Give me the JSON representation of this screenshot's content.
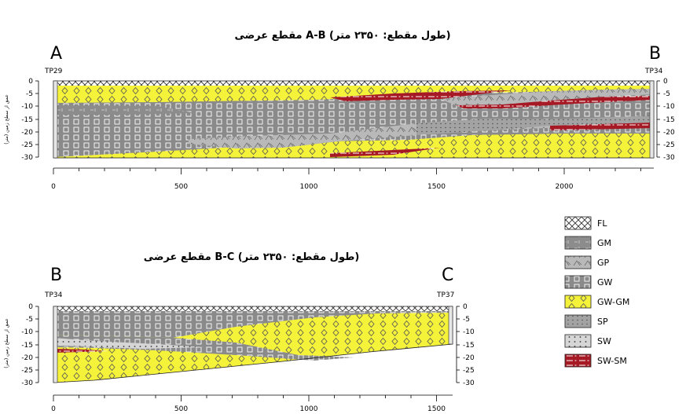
{
  "section_ab": {
    "title_ltr": "A-B",
    "title_rtl_before": "مقطع عرضی",
    "title_rtl_after": "(طول مقطع: ۲۳۵۰ متر)",
    "left_label": "A",
    "right_label": "B",
    "left_tp": "TP29",
    "right_tp": "TP34",
    "depth_ticks": [
      "0",
      "-5",
      "-10",
      "-15",
      "-20",
      "-25",
      "-30"
    ],
    "distance_ticks": [
      "0",
      "500",
      "1000",
      "1500",
      "2000"
    ],
    "axis_label": "عمق از سطح زمین (متر)"
  },
  "section_bc": {
    "title_ltr": "B-C",
    "title_rtl_before": "مقطع عرضی",
    "title_rtl_after": "(طول مقطع: ۲۳۵۰ متر)",
    "left_label": "B",
    "right_label": "C",
    "left_tp": "TP34",
    "right_tp": "TP37",
    "depth_ticks": [
      "0",
      "-5",
      "-10",
      "-15",
      "-20",
      "-25",
      "-30"
    ],
    "distance_ticks": [
      "0",
      "500",
      "1000",
      "1500"
    ],
    "axis_label": "عمق از سطح زمین (متر)"
  },
  "legend": [
    {
      "code": "FL",
      "label": "FL",
      "color": "#ffffff",
      "pattern": "cross-hatch"
    },
    {
      "code": "GM",
      "label": "GM",
      "color": "#8c8c8c",
      "pattern": "dash"
    },
    {
      "code": "GP",
      "label": "GP",
      "color": "#b9b9b9",
      "pattern": "triangles"
    },
    {
      "code": "GW",
      "label": "GW",
      "color": "#8a8a8a",
      "pattern": "squares"
    },
    {
      "code": "GW-GM",
      "label": "GW-GM",
      "color": "#f5f23a",
      "pattern": "diamonds"
    },
    {
      "code": "SP",
      "label": "SP",
      "color": "#a3a3a3",
      "pattern": "small-dots"
    },
    {
      "code": "SW",
      "label": "SW",
      "color": "#d6d6d6",
      "pattern": "dots"
    },
    {
      "code": "SW-SM",
      "label": "SW-SM",
      "color": "#a61a26",
      "pattern": "dash-dot"
    }
  ]
}
